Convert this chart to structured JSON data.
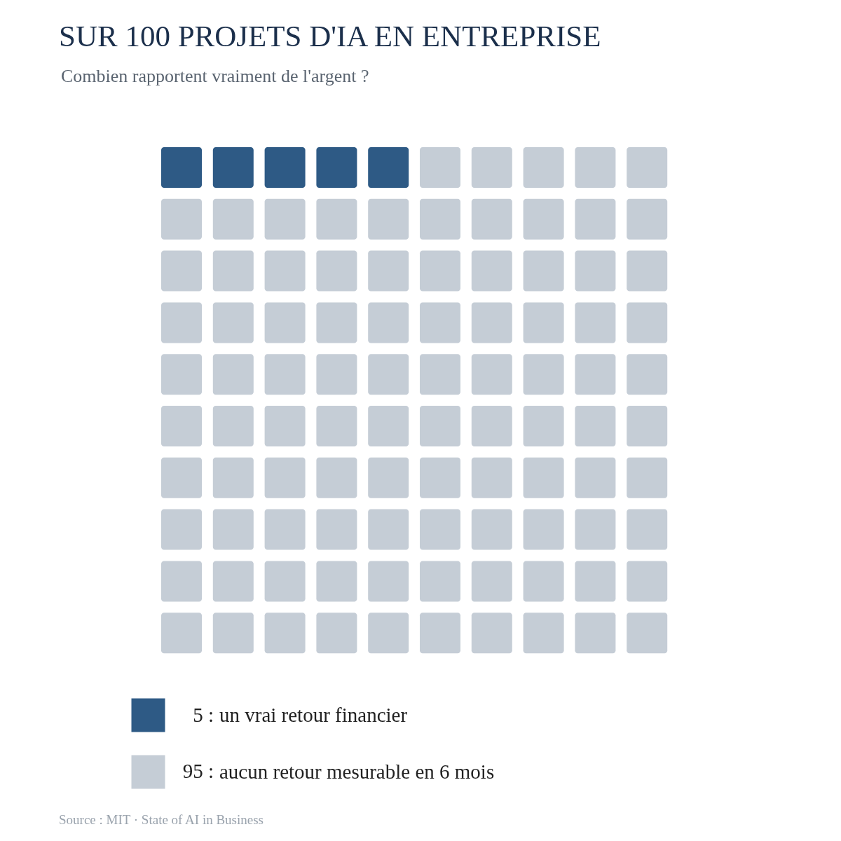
{
  "chart_data": {
    "type": "other",
    "title": "SUR 100 PROJETS D'IA EN ENTREPRISE",
    "subtitle": "Combien rapportent vraiment de l'argent ?",
    "categories": [
      "un vrai retour financier",
      "aucun retour mesurable en 6 mois"
    ],
    "values": [
      5,
      95
    ],
    "value_labels": [
      "5 :",
      "95 :"
    ],
    "colors": [
      "#2e5a85",
      "#c5cdd6"
    ],
    "annotations": [
      "Source : MIT · State of AI in Business"
    ]
  }
}
